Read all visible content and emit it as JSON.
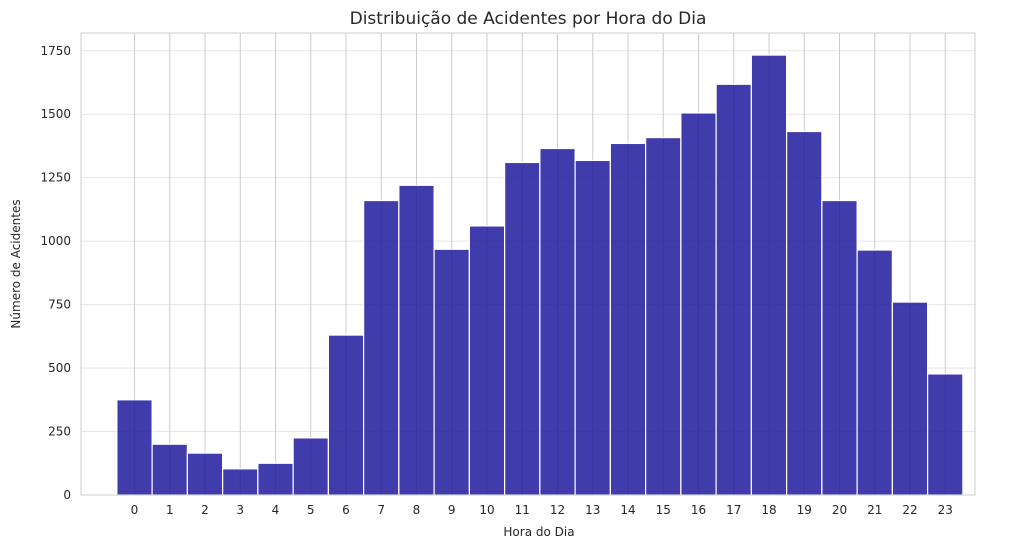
{
  "chart_data": {
    "type": "bar",
    "title": "Distribuição de Acidentes por Hora do Dia",
    "xlabel": "Hora do Dia",
    "ylabel": "Número de Acidentes",
    "categories": [
      "0",
      "1",
      "2",
      "3",
      "4",
      "5",
      "6",
      "7",
      "8",
      "9",
      "10",
      "11",
      "12",
      "13",
      "14",
      "15",
      "16",
      "17",
      "18",
      "19",
      "20",
      "21",
      "22",
      "23"
    ],
    "values": [
      375,
      200,
      165,
      103,
      125,
      225,
      630,
      1160,
      1220,
      968,
      1060,
      1310,
      1365,
      1318,
      1385,
      1408,
      1505,
      1618,
      1733,
      1432,
      1160,
      965,
      760,
      477
    ],
    "yticks": [
      0,
      250,
      500,
      750,
      1000,
      1250,
      1500,
      1750
    ],
    "ylim": [
      0,
      1820
    ],
    "grid": true,
    "colors": {
      "bar": "#1f1a9e",
      "bar_edge": "#ffffff",
      "grid": "#e6e6e6",
      "vgrid": "#cccccc",
      "axis": "#cccccc"
    }
  }
}
